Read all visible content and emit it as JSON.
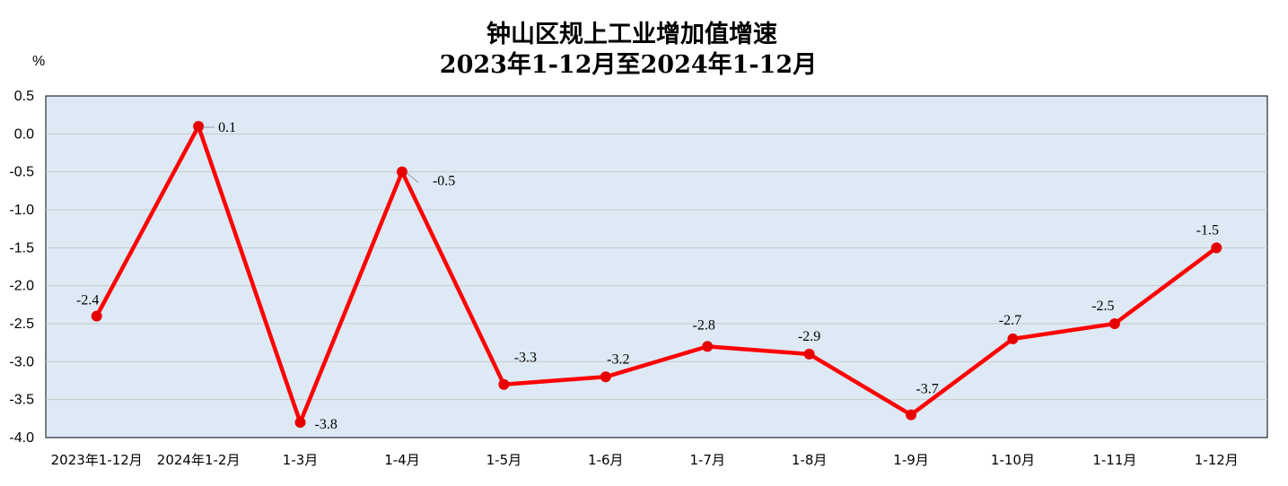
{
  "chart_data": {
    "type": "line",
    "title": "钟山区规上工业增加值增速",
    "subtitle": "2023年1-12月至2024年1-12月",
    "ylabel": "%",
    "ylim": [
      -4.0,
      0.5
    ],
    "yticks": [
      "0.5",
      "0.0",
      "-0.5",
      "-1.0",
      "-1.5",
      "-2.0",
      "-2.5",
      "-3.0",
      "-3.5",
      "-4.0"
    ],
    "grid": true,
    "categories": [
      "2023年1-12月",
      "2024年1-2月",
      "1-3月",
      "1-4月",
      "1-5月",
      "1-6月",
      "1-7月",
      "1-8月",
      "1-9月",
      "1-10月",
      "1-11月",
      "1-12月"
    ],
    "values": [
      -2.4,
      0.1,
      -3.8,
      -0.5,
      -3.3,
      -3.2,
      -2.8,
      -2.9,
      -3.7,
      -2.7,
      -2.5,
      -1.5
    ],
    "data_labels": [
      "-2.4",
      "0.1",
      "-3.8",
      "-0.5",
      "-3.3",
      "-3.2",
      "-2.8",
      "-2.9",
      "-3.7",
      "-2.7",
      "-2.5",
      "-1.5"
    ],
    "colors": {
      "line": "#ff0000",
      "marker": "#e60000",
      "plot_bg": "#dde9f5",
      "grid": "#c9c9c9",
      "axis": "#000000"
    }
  }
}
